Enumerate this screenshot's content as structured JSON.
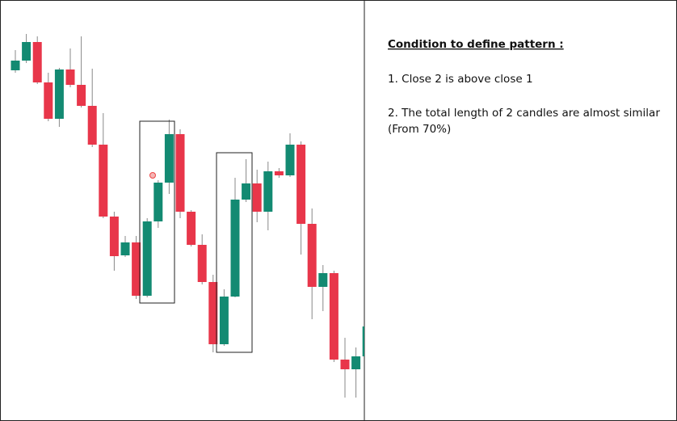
{
  "chart_data": {
    "type": "candlestick",
    "up_color": "#138a72",
    "down_color": "#e8364a",
    "ylim": [
      0,
      521
    ],
    "open": [
      434,
      446,
      469,
      419,
      374,
      435,
      416,
      390,
      342,
      253,
      205,
      221,
      155,
      247,
      295,
      355,
      259,
      218,
      172,
      95,
      154,
      274,
      294,
      259,
      309,
      304,
      342,
      244,
      166,
      183,
      76,
      64,
      80
    ],
    "high": [
      459,
      479,
      476,
      431,
      437,
      461,
      476,
      436,
      381,
      259,
      229,
      229,
      251,
      298,
      373,
      361,
      261,
      231,
      181,
      163,
      301,
      324,
      311,
      321,
      313,
      356,
      346,
      263,
      193,
      186,
      103,
      91,
      117
    ],
    "low": [
      431,
      443,
      417,
      371,
      364,
      413,
      388,
      339,
      251,
      186,
      203,
      151,
      153,
      239,
      281,
      251,
      216,
      169,
      85,
      93,
      153,
      271,
      246,
      236,
      301,
      302,
      206,
      126,
      136,
      73,
      29,
      29,
      78
    ],
    "close": [
      446,
      469,
      419,
      374,
      435,
      416,
      390,
      342,
      253,
      204,
      221,
      155,
      247,
      295,
      355,
      259,
      218,
      172,
      95,
      154,
      274,
      294,
      259,
      309,
      304,
      342,
      244,
      166,
      183,
      76,
      64,
      80,
      117
    ]
  },
  "notes": {
    "title": "Condition to define pattern :",
    "items": [
      "1. Close 2 is above close 1",
      "2. The total length of 2 candles are almost similar",
      "(From 70%)"
    ]
  }
}
